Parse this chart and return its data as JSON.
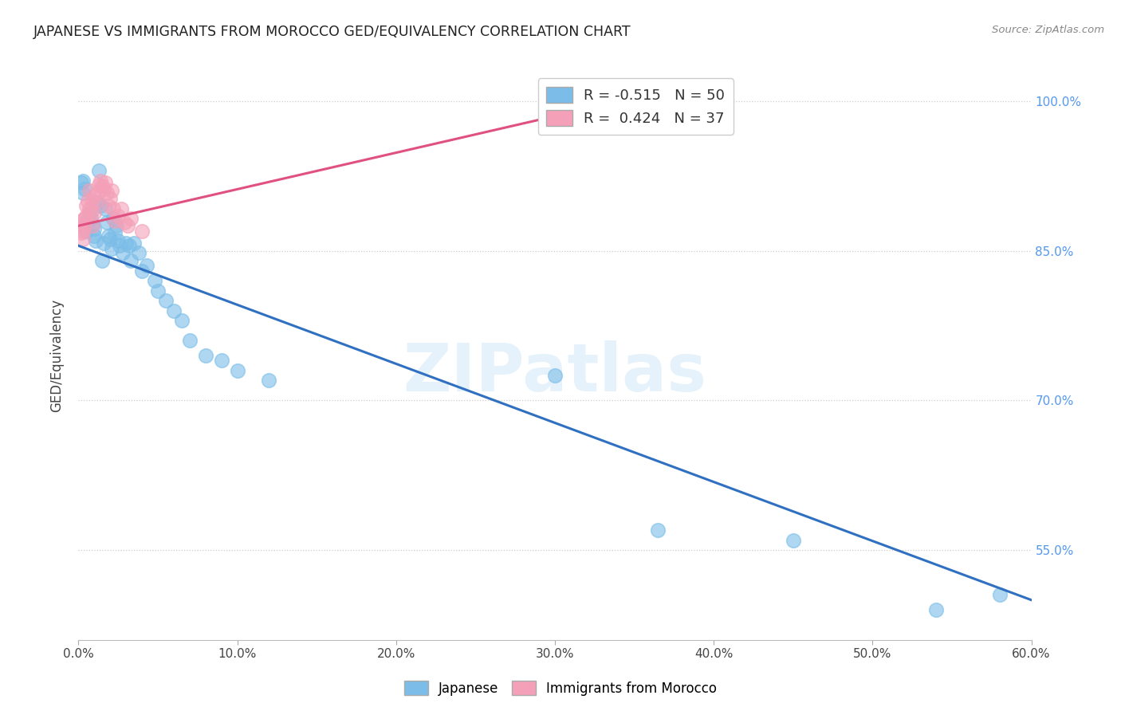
{
  "title": "JAPANESE VS IMMIGRANTS FROM MOROCCO GED/EQUIVALENCY CORRELATION CHART",
  "source": "Source: ZipAtlas.com",
  "ylabel": "GED/Equivalency",
  "xlim": [
    0.0,
    0.6
  ],
  "ylim": [
    0.46,
    1.03
  ],
  "watermark": "ZIPatlas",
  "legend_r_blue": "-0.515",
  "legend_n_blue": "50",
  "legend_r_pink": "0.424",
  "legend_n_pink": "37",
  "blue_color": "#7bbde8",
  "pink_color": "#f4a0b8",
  "blue_line_color": "#3070c0",
  "pink_line_color": "#e05080",
  "ytick_vals": [
    0.55,
    0.7,
    0.85,
    1.0
  ],
  "ytick_labels": [
    "55.0%",
    "70.0%",
    "85.0%",
    "100.0%"
  ],
  "xtick_vals": [
    0.0,
    0.1,
    0.2,
    0.3,
    0.4,
    0.5,
    0.6
  ],
  "xtick_labels": [
    "0.0%",
    "10.0%",
    "20.0%",
    "30.0%",
    "40.0%",
    "50.0%",
    "60.0%"
  ],
  "blue_line_x0": 0.0,
  "blue_line_y0": 0.855,
  "blue_line_x1": 0.6,
  "blue_line_y1": 0.5,
  "pink_line_x0": 0.0,
  "pink_line_y0": 0.875,
  "pink_line_x1": 0.355,
  "pink_line_y1": 1.005,
  "japanese_x": [
    0.54,
    0.58,
    0.45,
    0.3,
    0.365,
    0.002,
    0.003,
    0.003,
    0.004,
    0.005,
    0.006,
    0.007,
    0.008,
    0.009,
    0.01,
    0.01,
    0.011,
    0.012,
    0.013,
    0.014,
    0.015,
    0.016,
    0.017,
    0.018,
    0.019,
    0.02,
    0.021,
    0.022,
    0.023,
    0.024,
    0.025,
    0.026,
    0.028,
    0.03,
    0.032,
    0.033,
    0.035,
    0.038,
    0.04,
    0.043,
    0.048,
    0.05,
    0.055,
    0.06,
    0.065,
    0.07,
    0.08,
    0.09,
    0.1,
    0.12
  ],
  "japanese_y": [
    0.49,
    0.505,
    0.56,
    0.725,
    0.57,
    0.918,
    0.908,
    0.92,
    0.912,
    0.87,
    0.88,
    0.888,
    0.882,
    0.876,
    0.872,
    0.865,
    0.86,
    0.898,
    0.93,
    0.895,
    0.84,
    0.858,
    0.892,
    0.878,
    0.865,
    0.862,
    0.852,
    0.882,
    0.868,
    0.875,
    0.86,
    0.855,
    0.848,
    0.858,
    0.855,
    0.84,
    0.858,
    0.848,
    0.83,
    0.835,
    0.82,
    0.81,
    0.8,
    0.79,
    0.78,
    0.76,
    0.745,
    0.74,
    0.73,
    0.72
  ],
  "morocco_x": [
    0.001,
    0.002,
    0.002,
    0.003,
    0.003,
    0.004,
    0.004,
    0.005,
    0.005,
    0.006,
    0.007,
    0.007,
    0.008,
    0.009,
    0.009,
    0.01,
    0.01,
    0.011,
    0.012,
    0.013,
    0.014,
    0.015,
    0.016,
    0.017,
    0.018,
    0.019,
    0.02,
    0.021,
    0.022,
    0.023,
    0.025,
    0.027,
    0.029,
    0.031,
    0.033,
    0.04,
    0.355
  ],
  "morocco_y": [
    0.875,
    0.868,
    0.88,
    0.862,
    0.87,
    0.875,
    0.882,
    0.895,
    0.885,
    0.9,
    0.91,
    0.892,
    0.888,
    0.9,
    0.875,
    0.905,
    0.888,
    0.898,
    0.908,
    0.916,
    0.92,
    0.915,
    0.912,
    0.918,
    0.908,
    0.895,
    0.902,
    0.91,
    0.892,
    0.88,
    0.885,
    0.892,
    0.878,
    0.875,
    0.882,
    0.87,
    1.005
  ]
}
